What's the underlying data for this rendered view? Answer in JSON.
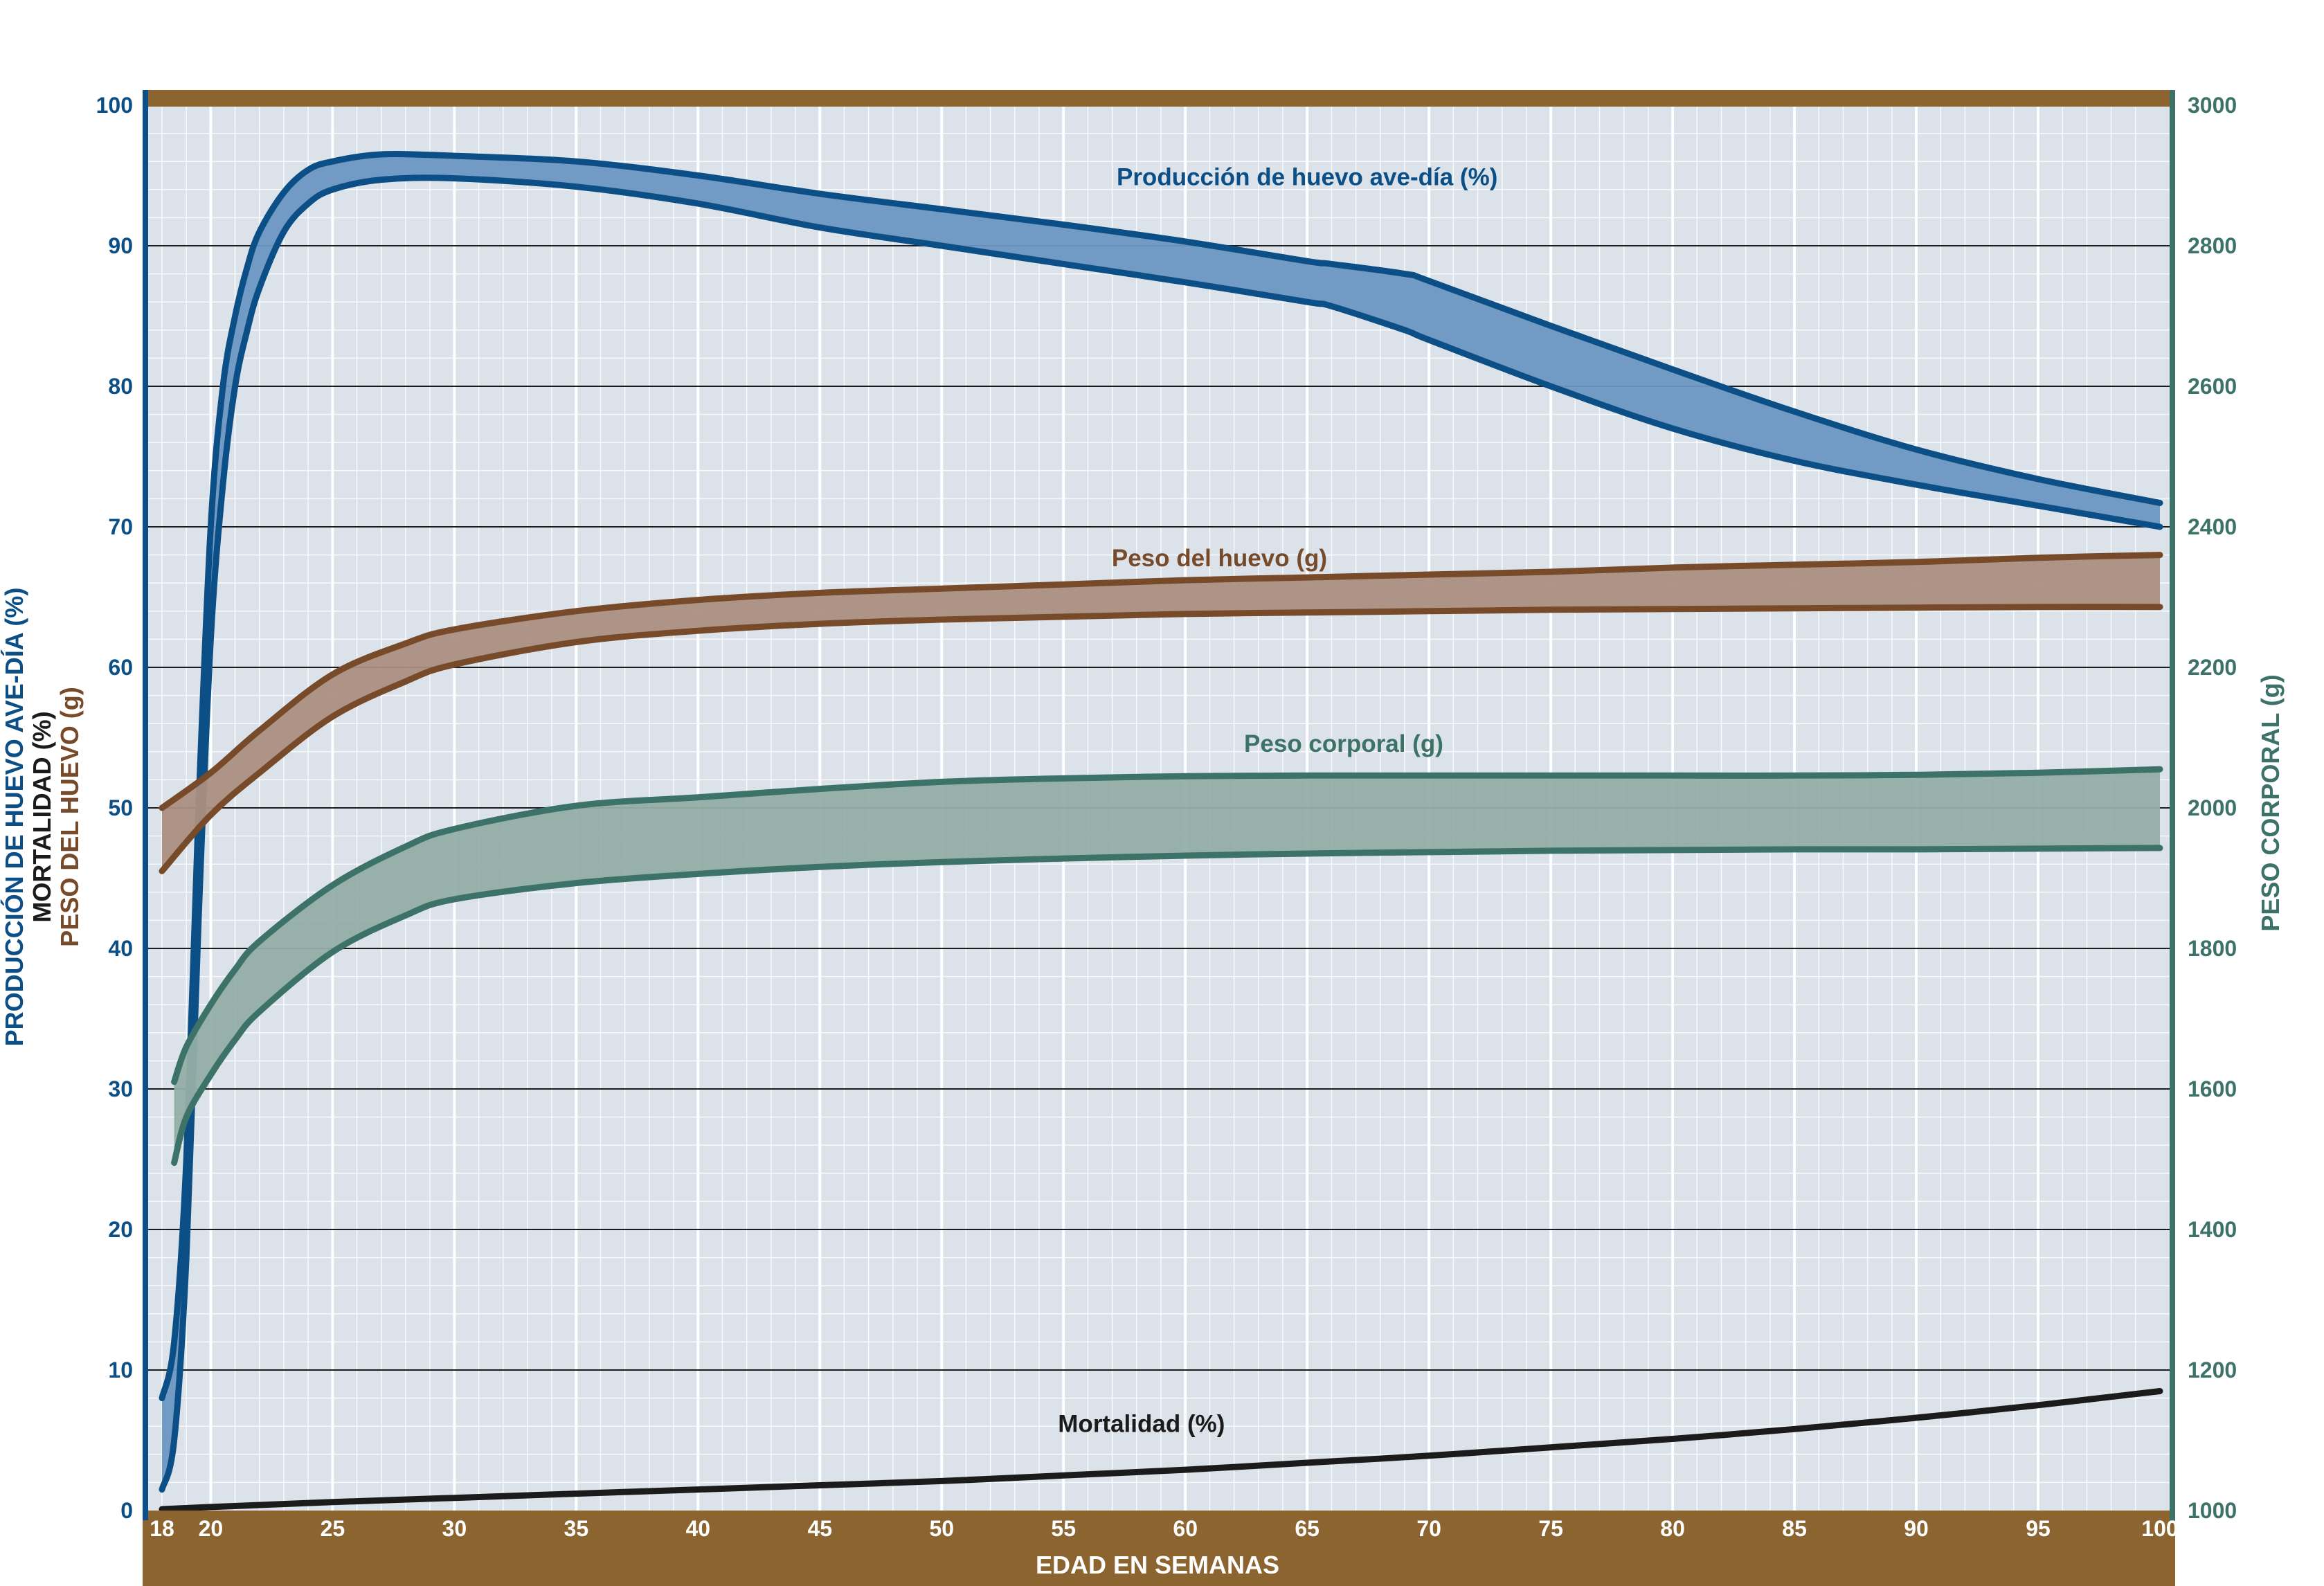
{
  "chart_data": {
    "type": "area",
    "title": "",
    "xlabel": "EDAD EN SEMANAS",
    "ylabel_left": [
      "PRODUCCIÓN DE HUEVO AVE-DÍA (%)",
      "MORTALIDAD (%)",
      "PESO DEL HUEVO (g)"
    ],
    "ylabel_right": "PESO CORPORAL (g)",
    "xlim": [
      18,
      100
    ],
    "ylim_left": [
      0,
      100
    ],
    "ylim_right": [
      1000,
      3000
    ],
    "x_ticks": [
      18,
      20,
      25,
      30,
      35,
      40,
      45,
      50,
      55,
      60,
      65,
      70,
      75,
      80,
      85,
      90,
      95,
      100
    ],
    "y_ticks_left": [
      0,
      10,
      20,
      30,
      40,
      50,
      60,
      70,
      80,
      90,
      100
    ],
    "y_ticks_right": [
      1000,
      1200,
      1400,
      1600,
      1800,
      2000,
      2200,
      2400,
      2600,
      2800,
      3000
    ],
    "grid": true,
    "series": [
      {
        "name": "Producción de huevo ave-día (%)",
        "axis": "left",
        "color": "#0b4f86",
        "fill": "#6c96c2",
        "x": [
          18,
          18.5,
          19,
          19.5,
          20,
          20.5,
          21,
          21.5,
          22,
          23,
          24,
          25,
          27,
          30,
          35,
          40,
          45,
          50,
          55,
          60,
          65,
          66,
          69,
          70,
          75,
          80,
          85,
          90,
          95,
          100
        ],
        "upper": [
          8,
          12,
          25,
          50,
          70,
          80,
          85,
          88.5,
          91,
          93.8,
          95.4,
          96,
          96.5,
          96.4,
          96,
          95,
          93.7,
          92.6,
          91.5,
          90.3,
          88.9,
          88.7,
          88,
          87.5,
          84.3,
          81.2,
          78.2,
          75.5,
          73.4,
          71.7
        ],
        "lower": [
          1.5,
          5,
          18,
          42,
          62,
          73,
          80,
          84,
          87,
          91,
          93,
          94,
          94.7,
          94.8,
          94.2,
          93,
          91.3,
          90,
          88.7,
          87.4,
          86,
          85.7,
          84,
          83.3,
          80,
          77,
          74.7,
          73,
          71.5,
          70
        ]
      },
      {
        "name": "Peso del huevo (g)",
        "axis": "left",
        "color": "#774a2a",
        "fill": "#ab8f81",
        "x": [
          18,
          20,
          22,
          25,
          28,
          30,
          35,
          40,
          45,
          50,
          55,
          60,
          65,
          70,
          75,
          80,
          85,
          90,
          95,
          100
        ],
        "upper": [
          50,
          52.5,
          55.5,
          59.5,
          61.7,
          62.7,
          64,
          64.8,
          65.3,
          65.6,
          65.9,
          66.2,
          66.4,
          66.6,
          66.8,
          67.1,
          67.3,
          67.5,
          67.8,
          68
        ],
        "lower": [
          45.5,
          49.5,
          52.5,
          56.5,
          59,
          60.2,
          61.8,
          62.6,
          63.1,
          63.4,
          63.6,
          63.8,
          63.9,
          64,
          64.1,
          64.15,
          64.2,
          64.25,
          64.3,
          64.3
        ]
      },
      {
        "name": "Peso corporal (g)",
        "axis": "right",
        "color": "#3c7268",
        "fill": "#93aea6",
        "x": [
          18.5,
          19,
          20,
          21,
          22,
          25,
          28,
          30,
          35,
          40,
          45,
          50,
          55,
          60,
          65,
          70,
          75,
          80,
          85,
          90,
          95,
          100
        ],
        "upper": [
          1610,
          1660,
          1720,
          1770,
          1810,
          1890,
          1945,
          1970,
          2003,
          2015,
          2027,
          2037,
          2042,
          2045,
          2046,
          2046,
          2046,
          2046,
          2046,
          2047,
          2050,
          2055
        ],
        "lower": [
          1495,
          1560,
          1620,
          1670,
          1710,
          1795,
          1847,
          1870,
          1893,
          1906,
          1916,
          1923,
          1928,
          1932,
          1935,
          1937,
          1939,
          1940,
          1941,
          1941,
          1942,
          1943
        ]
      },
      {
        "name": "Mortalidad (%)",
        "axis": "left",
        "color": "#1b1b1b",
        "x": [
          18,
          20,
          25,
          30,
          35,
          40,
          45,
          50,
          55,
          60,
          65,
          70,
          75,
          80,
          85,
          90,
          95,
          100
        ],
        "values": [
          0.1,
          0.25,
          0.6,
          0.9,
          1.2,
          1.5,
          1.8,
          2.1,
          2.5,
          2.9,
          3.4,
          3.9,
          4.5,
          5.1,
          5.8,
          6.6,
          7.5,
          8.5
        ]
      }
    ],
    "annotations": [
      {
        "text": "Producción de huevo ave-día (%)",
        "x": 65,
        "y": 94.3,
        "color": "#0b4f86"
      },
      {
        "text": "Peso del huevo (g)",
        "x": 61.4,
        "y": 67.2,
        "color": "#774a2a"
      },
      {
        "text": "Peso corporal (g)",
        "x": 66.5,
        "y": 54.0,
        "color": "#3c7268"
      },
      {
        "text": "Mortalidad (%)",
        "x": 58.2,
        "y": 5.6,
        "color": "#1b1b1b"
      }
    ]
  },
  "colors": {
    "plot_bg": "#dbe2e9",
    "brown_bar": "#8c6430",
    "left_axis": "#0b4f86",
    "right_axis": "#3c7268",
    "tick_right": "#3c7268",
    "white_text": "#ffffff"
  }
}
